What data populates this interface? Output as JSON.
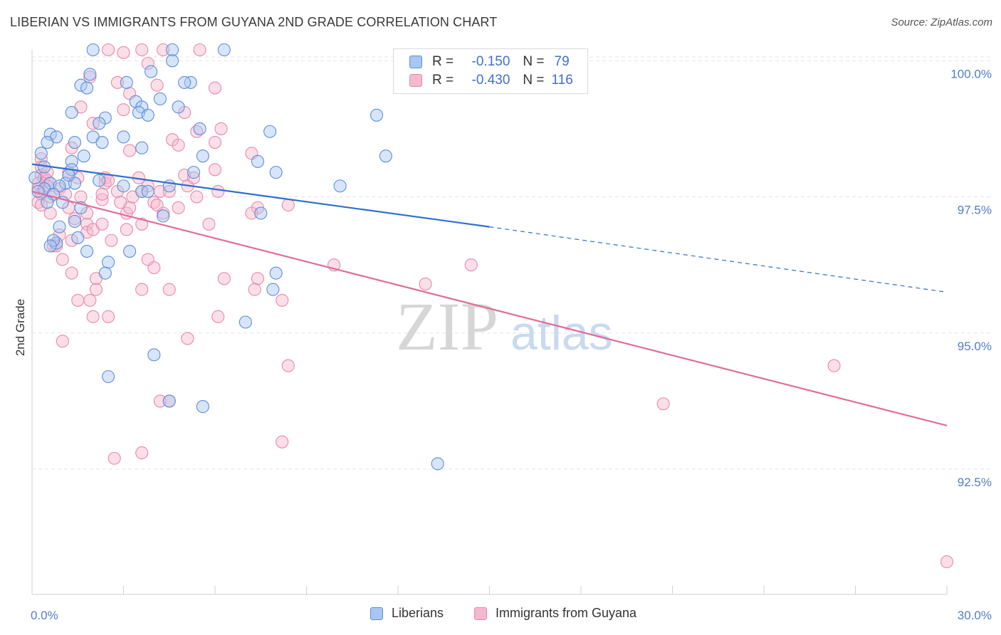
{
  "header": {
    "title": "LIBERIAN VS IMMIGRANTS FROM GUYANA 2ND GRADE CORRELATION CHART",
    "source": "Source: ZipAtlas.com"
  },
  "legend": {
    "rows": [
      {
        "r_label": "R =",
        "r_value": "-0.150",
        "n_label": "N =",
        "n_value": "79"
      },
      {
        "r_label": "R =",
        "r_value": "-0.430",
        "n_label": "N =",
        "n_value": "116"
      }
    ]
  },
  "bottom_legend": {
    "series_a": "Liberians",
    "series_b": "Immigrants from Guyana"
  },
  "watermark": {
    "zip": "ZIP",
    "atlas": "atlas"
  },
  "colors": {
    "blue_fill": "#a9c6f2",
    "blue_stroke": "#5b8fd8",
    "blue_line": "#2e6fd0",
    "pink_fill": "#f6b9cc",
    "pink_stroke": "#e889a8",
    "pink_line": "#e06d97",
    "grid": "#e3e3e3",
    "tick_text": "#4f7dc9"
  },
  "chart_data": {
    "type": "scatter",
    "title": "LIBERIAN VS IMMIGRANTS FROM GUYANA 2ND GRADE CORRELATION CHART",
    "xlabel": "",
    "ylabel": "2nd Grade",
    "x_tick_labels": [
      "0.0%",
      "30.0%"
    ],
    "y_tick_labels": [
      "100.0%",
      "97.5%",
      "95.0%",
      "92.5%"
    ],
    "y_ticks": [
      100.0,
      97.5,
      95.0,
      92.5
    ],
    "xlim": [
      0,
      30
    ],
    "ylim": [
      90.2,
      100.2
    ],
    "series": [
      {
        "name": "Liberians",
        "R": -0.15,
        "N": 79,
        "trend": {
          "x0": 0,
          "y0": 98.1,
          "x1": 15,
          "y1": 96.95,
          "x_dash_end": 30,
          "y_dash_end": 95.75
        },
        "points": [
          [
            2.0,
            100.2
          ],
          [
            4.6,
            100.2
          ],
          [
            6.3,
            100.2
          ],
          [
            4.6,
            100.0
          ],
          [
            1.9,
            99.75
          ],
          [
            3.9,
            99.8
          ],
          [
            5.2,
            99.6
          ],
          [
            3.1,
            99.6
          ],
          [
            1.6,
            99.55
          ],
          [
            1.8,
            99.5
          ],
          [
            5.0,
            99.6
          ],
          [
            4.2,
            99.3
          ],
          [
            3.4,
            99.25
          ],
          [
            3.6,
            99.15
          ],
          [
            4.8,
            99.15
          ],
          [
            3.5,
            99.05
          ],
          [
            1.3,
            99.05
          ],
          [
            3.8,
            99.0
          ],
          [
            2.4,
            98.95
          ],
          [
            2.2,
            98.85
          ],
          [
            11.3,
            99.0
          ],
          [
            5.5,
            98.75
          ],
          [
            0.6,
            98.65
          ],
          [
            0.8,
            98.6
          ],
          [
            2.0,
            98.6
          ],
          [
            3.0,
            98.6
          ],
          [
            7.8,
            98.7
          ],
          [
            0.5,
            98.5
          ],
          [
            1.4,
            98.5
          ],
          [
            2.3,
            98.5
          ],
          [
            3.6,
            98.4
          ],
          [
            11.6,
            98.25
          ],
          [
            0.3,
            98.3
          ],
          [
            1.7,
            98.25
          ],
          [
            5.6,
            98.25
          ],
          [
            7.4,
            98.15
          ],
          [
            0.4,
            98.05
          ],
          [
            1.3,
            98.15
          ],
          [
            1.3,
            98.0
          ],
          [
            8.0,
            97.95
          ],
          [
            5.3,
            97.95
          ],
          [
            0.1,
            97.85
          ],
          [
            2.2,
            97.8
          ],
          [
            0.6,
            97.75
          ],
          [
            1.1,
            97.75
          ],
          [
            0.9,
            97.7
          ],
          [
            4.5,
            97.7
          ],
          [
            1.4,
            97.75
          ],
          [
            3.0,
            97.7
          ],
          [
            10.1,
            97.7
          ],
          [
            0.4,
            97.65
          ],
          [
            0.2,
            97.6
          ],
          [
            0.7,
            97.55
          ],
          [
            3.6,
            97.6
          ],
          [
            3.8,
            97.6
          ],
          [
            0.5,
            97.4
          ],
          [
            1.0,
            97.4
          ],
          [
            7.5,
            97.2
          ],
          [
            4.3,
            97.15
          ],
          [
            0.9,
            96.95
          ],
          [
            1.4,
            97.05
          ],
          [
            1.5,
            96.75
          ],
          [
            0.8,
            96.65
          ],
          [
            0.7,
            96.7
          ],
          [
            1.8,
            96.5
          ],
          [
            3.2,
            96.5
          ],
          [
            2.5,
            96.3
          ],
          [
            2.4,
            96.1
          ],
          [
            8.0,
            96.1
          ],
          [
            7.9,
            95.8
          ],
          [
            7.0,
            95.2
          ],
          [
            4.0,
            94.6
          ],
          [
            2.5,
            94.2
          ],
          [
            4.5,
            93.75
          ],
          [
            5.6,
            93.65
          ],
          [
            13.3,
            92.6
          ],
          [
            0.6,
            96.6
          ],
          [
            1.2,
            97.9
          ],
          [
            1.6,
            97.3
          ]
        ]
      },
      {
        "name": "Immigrants from Guyana",
        "R": -0.43,
        "N": 116,
        "trend": {
          "x0": 0,
          "y0": 97.6,
          "x1": 30,
          "y1": 93.3
        },
        "points": [
          [
            2.5,
            100.2
          ],
          [
            3.0,
            100.15
          ],
          [
            3.6,
            100.2
          ],
          [
            4.3,
            100.2
          ],
          [
            5.5,
            100.2
          ],
          [
            3.8,
            99.95
          ],
          [
            2.8,
            99.6
          ],
          [
            1.9,
            99.7
          ],
          [
            4.1,
            99.55
          ],
          [
            6.0,
            99.5
          ],
          [
            3.2,
            99.4
          ],
          [
            1.6,
            99.15
          ],
          [
            3.0,
            99.1
          ],
          [
            5.0,
            99.05
          ],
          [
            2.0,
            98.85
          ],
          [
            5.4,
            98.7
          ],
          [
            6.2,
            98.75
          ],
          [
            4.6,
            98.55
          ],
          [
            1.3,
            98.4
          ],
          [
            3.2,
            98.35
          ],
          [
            4.8,
            98.45
          ],
          [
            6.0,
            98.5
          ],
          [
            7.2,
            98.3
          ],
          [
            0.3,
            98.2
          ],
          [
            0.3,
            98.05
          ],
          [
            0.3,
            97.9
          ],
          [
            0.4,
            97.85
          ],
          [
            0.5,
            97.8
          ],
          [
            0.2,
            97.75
          ],
          [
            0.2,
            97.65
          ],
          [
            0.3,
            97.55
          ],
          [
            0.2,
            97.4
          ],
          [
            0.3,
            97.35
          ],
          [
            0.5,
            97.7
          ],
          [
            0.6,
            97.5
          ],
          [
            0.6,
            97.2
          ],
          [
            0.9,
            97.65
          ],
          [
            1.1,
            97.55
          ],
          [
            1.2,
            97.3
          ],
          [
            1.4,
            97.1
          ],
          [
            1.5,
            97.85
          ],
          [
            1.6,
            97.5
          ],
          [
            1.8,
            97.0
          ],
          [
            1.8,
            97.2
          ],
          [
            2.3,
            97.45
          ],
          [
            2.4,
            97.85
          ],
          [
            2.4,
            97.75
          ],
          [
            2.5,
            97.8
          ],
          [
            2.8,
            97.6
          ],
          [
            2.9,
            97.4
          ],
          [
            3.1,
            97.2
          ],
          [
            3.2,
            97.3
          ],
          [
            3.3,
            97.5
          ],
          [
            3.5,
            97.85
          ],
          [
            3.6,
            97.6
          ],
          [
            3.8,
            97.7
          ],
          [
            4.0,
            97.4
          ],
          [
            4.2,
            97.6
          ],
          [
            4.3,
            97.2
          ],
          [
            4.5,
            97.6
          ],
          [
            4.8,
            97.3
          ],
          [
            5.0,
            97.9
          ],
          [
            5.1,
            97.7
          ],
          [
            5.3,
            97.85
          ],
          [
            5.4,
            97.5
          ],
          [
            6.0,
            98.0
          ],
          [
            7.4,
            97.3
          ],
          [
            8.4,
            97.35
          ],
          [
            5.8,
            97.0
          ],
          [
            7.2,
            97.2
          ],
          [
            1.8,
            96.85
          ],
          [
            2.0,
            96.9
          ],
          [
            2.3,
            97.0
          ],
          [
            3.6,
            97.0
          ],
          [
            3.1,
            96.9
          ],
          [
            1.3,
            96.7
          ],
          [
            0.7,
            96.6
          ],
          [
            0.8,
            96.6
          ],
          [
            1.0,
            96.35
          ],
          [
            1.3,
            96.1
          ],
          [
            2.1,
            96.0
          ],
          [
            3.8,
            96.35
          ],
          [
            4.0,
            96.2
          ],
          [
            6.3,
            96.0
          ],
          [
            7.4,
            96.0
          ],
          [
            9.9,
            96.25
          ],
          [
            12.9,
            95.9
          ],
          [
            14.4,
            96.25
          ],
          [
            2.1,
            95.8
          ],
          [
            3.6,
            95.8
          ],
          [
            4.5,
            95.8
          ],
          [
            7.3,
            95.8
          ],
          [
            1.5,
            95.6
          ],
          [
            1.9,
            95.6
          ],
          [
            8.2,
            95.6
          ],
          [
            2.0,
            95.3
          ],
          [
            2.5,
            95.3
          ],
          [
            6.1,
            95.3
          ],
          [
            1.0,
            94.85
          ],
          [
            5.1,
            94.9
          ],
          [
            8.4,
            94.4
          ],
          [
            26.3,
            94.4
          ],
          [
            4.2,
            93.75
          ],
          [
            4.5,
            93.75
          ],
          [
            20.7,
            93.7
          ],
          [
            8.2,
            93.0
          ],
          [
            2.7,
            92.7
          ],
          [
            3.6,
            92.8
          ],
          [
            30.0,
            90.8
          ],
          [
            0.5,
            97.95
          ],
          [
            1.2,
            97.95
          ],
          [
            2.3,
            97.55
          ],
          [
            4.1,
            97.35
          ],
          [
            6.1,
            97.6
          ],
          [
            0.9,
            96.8
          ],
          [
            2.6,
            96.7
          ]
        ]
      }
    ]
  }
}
